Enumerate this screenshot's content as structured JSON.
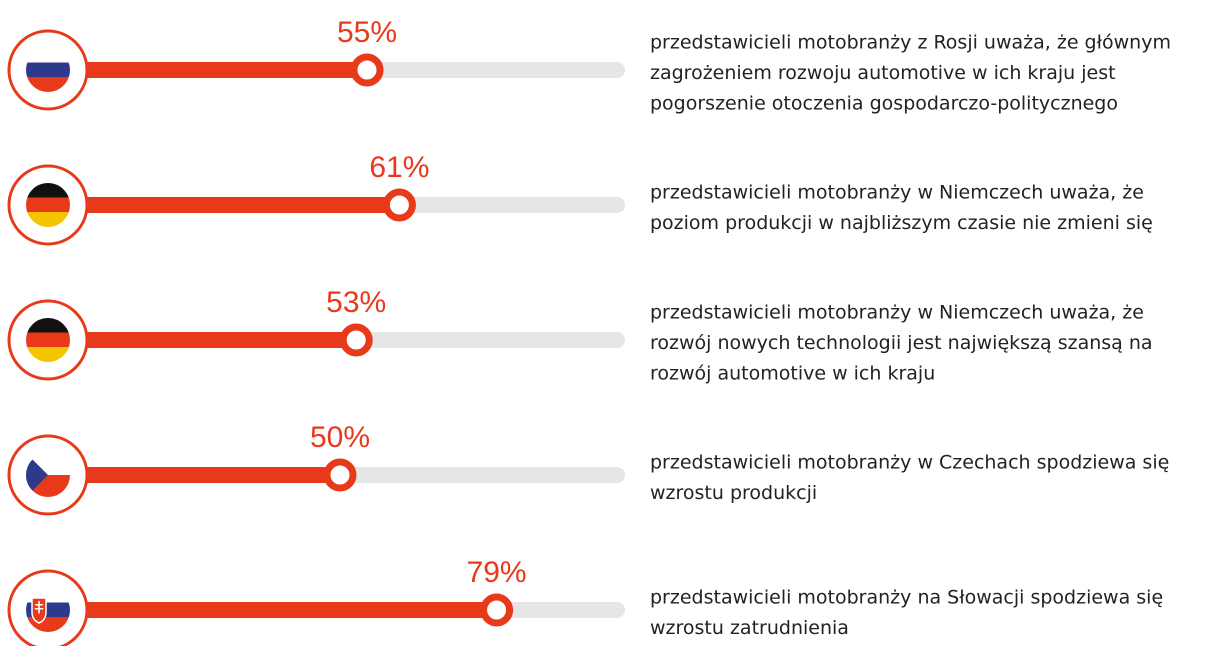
{
  "chart_data": {
    "type": "progress",
    "values": [
      55,
      61,
      53,
      50,
      79
    ],
    "value_labels": [
      "55%",
      "61%",
      "53%",
      "50%",
      "79%"
    ],
    "xlim": [
      0,
      100
    ],
    "color": "#e8391a",
    "track_color": "#e6e6e6",
    "descriptions": [
      [
        "przedstawicieli motobranży z Rosji uważa, że głównym",
        "zagrożeniem rozwoju automotive w ich kraju jest",
        "pogorszenie otoczenia gospodarczo-politycznego"
      ],
      [
        "przedstawicieli motobranży w Niemczech uważa, że",
        "poziom produkcji w najbliższym czasie nie zmieni się"
      ],
      [
        "przedstawicieli motobranży w Niemczech uważa, że",
        "rozwój nowych technologii jest największą szansą na",
        "rozwój automotive w ich kraju"
      ],
      [
        "przedstawicieli motobranży w Czechach spodziewa się",
        "wzrostu produkcji"
      ],
      [
        "przedstawicieli motobranży na Słowacji spodziewa się",
        "wzrostu zatrudnienia"
      ]
    ]
  }
}
